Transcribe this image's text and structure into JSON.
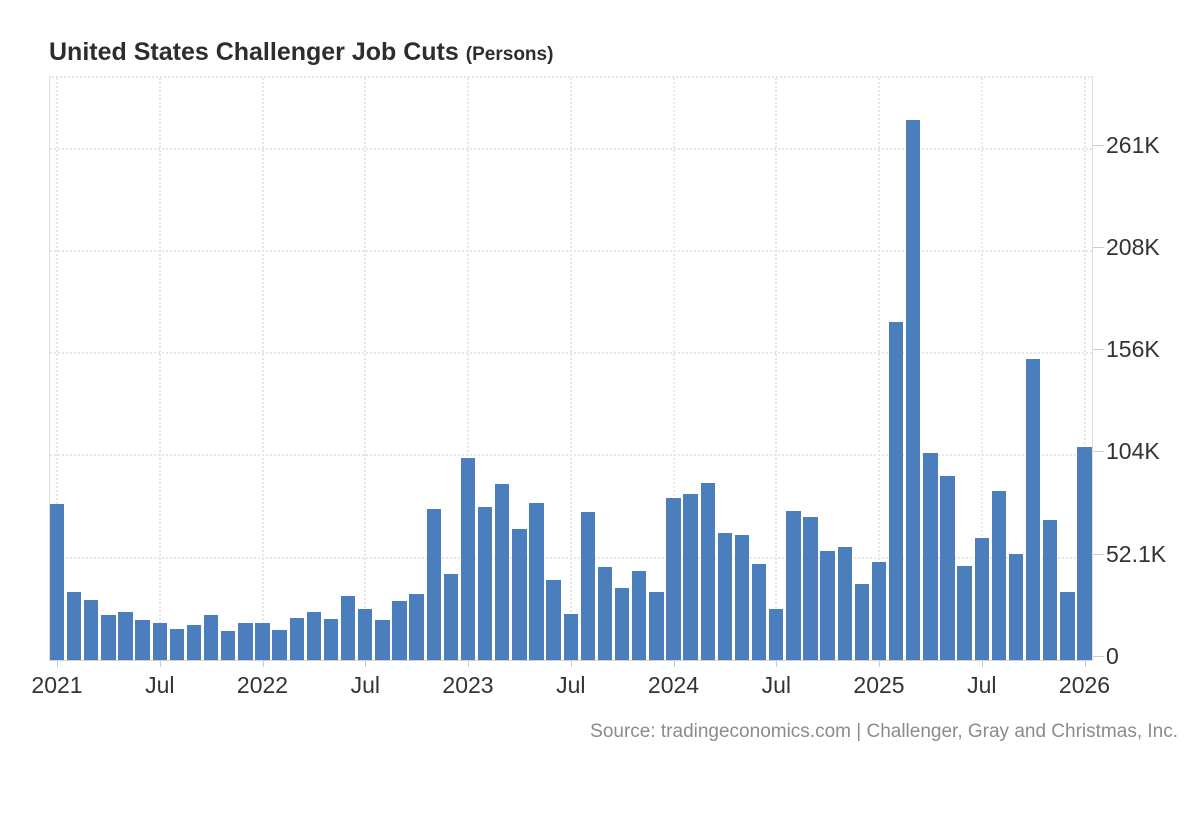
{
  "title": {
    "main": "United States Challenger Job Cuts",
    "suffix": "(Persons)"
  },
  "source_note": "Source: tradingeconomics.com | Challenger, Gray and Christmas, Inc.",
  "chart_data": {
    "type": "bar",
    "title": "United States Challenger Job Cuts",
    "subtitle": "(Persons)",
    "ylabel": "Persons",
    "xlabel": "",
    "legend": "none",
    "grid": "dotted horizontal and vertical",
    "bar_color": "#4b7ebc",
    "axis_text_color": "#333333",
    "ylim": [
      0,
      296400
    ],
    "months": [
      "2021-01",
      "2021-02",
      "2021-03",
      "2021-04",
      "2021-05",
      "2021-06",
      "2021-07",
      "2021-08",
      "2021-09",
      "2021-10",
      "2021-11",
      "2021-12",
      "2022-01",
      "2022-02",
      "2022-03",
      "2022-04",
      "2022-05",
      "2022-06",
      "2022-07",
      "2022-08",
      "2022-09",
      "2022-10",
      "2022-11",
      "2022-12",
      "2023-01",
      "2023-02",
      "2023-03",
      "2023-04",
      "2023-05",
      "2023-06",
      "2023-07",
      "2023-08",
      "2023-09",
      "2023-10",
      "2023-11",
      "2023-12",
      "2024-01",
      "2024-02",
      "2024-03",
      "2024-04",
      "2024-05",
      "2024-06",
      "2024-07",
      "2024-08",
      "2024-09",
      "2024-10",
      "2024-11",
      "2024-12",
      "2025-01",
      "2025-02",
      "2025-03",
      "2025-04",
      "2025-05",
      "2025-06",
      "2025-07",
      "2025-08",
      "2025-09",
      "2025-10",
      "2025-11",
      "2025-12",
      "2026-01"
    ],
    "values": [
      79552,
      34531,
      30603,
      22913,
      24586,
      20476,
      18942,
      15723,
      17895,
      22822,
      14875,
      19052,
      19064,
      15245,
      21387,
      24286,
      20712,
      32517,
      25810,
      20485,
      29989,
      33843,
      76835,
      43651,
      102943,
      77770,
      89703,
      66995,
      80089,
      40709,
      23697,
      75151,
      47457,
      36836,
      45510,
      34817,
      82307,
      84638,
      90309,
      64789,
      63816,
      48786,
      25885,
      75891,
      72821,
      55597,
      57727,
      38792,
      49795,
      172017,
      275240,
      105441,
      93816,
      47999,
      62075,
      85979,
      54064,
      153074,
      71321,
      34700,
      108300
    ],
    "yticks": [
      {
        "value": 0,
        "label": "0"
      },
      {
        "value": 52100,
        "label": "52.1K"
      },
      {
        "value": 104200,
        "label": "104K"
      },
      {
        "value": 156300,
        "label": "156K"
      },
      {
        "value": 208400,
        "label": "208K"
      },
      {
        "value": 260500,
        "label": "261K"
      }
    ],
    "xticks": [
      {
        "pos": 0,
        "label": "2021"
      },
      {
        "pos": 6,
        "label": "Jul"
      },
      {
        "pos": 12,
        "label": "2022"
      },
      {
        "pos": 18,
        "label": "Jul"
      },
      {
        "pos": 24,
        "label": "2023"
      },
      {
        "pos": 30,
        "label": "Jul"
      },
      {
        "pos": 36,
        "label": "2024"
      },
      {
        "pos": 42,
        "label": "Jul"
      },
      {
        "pos": 48,
        "label": "2025"
      },
      {
        "pos": 54,
        "label": "Jul"
      },
      {
        "pos": 60,
        "label": "2026"
      }
    ]
  }
}
